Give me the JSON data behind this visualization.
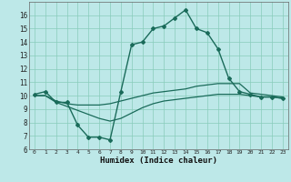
{
  "xlabel": "Humidex (Indice chaleur)",
  "bg_color": "#bde8e8",
  "grid_color": "#88ccbb",
  "line_color": "#1a6b5a",
  "xlim": [
    -0.5,
    23.5
  ],
  "ylim": [
    6,
    17
  ],
  "xticks": [
    0,
    1,
    2,
    3,
    4,
    5,
    6,
    7,
    8,
    9,
    10,
    11,
    12,
    13,
    14,
    15,
    16,
    17,
    18,
    19,
    20,
    21,
    22,
    23
  ],
  "yticks": [
    6,
    7,
    8,
    9,
    10,
    11,
    12,
    13,
    14,
    15,
    16
  ],
  "series": [
    {
      "x": [
        0,
        1,
        2,
        3,
        4,
        5,
        6,
        7,
        8,
        9,
        10,
        11,
        12,
        13,
        14,
        15,
        16,
        17,
        18,
        19,
        20,
        21,
        22,
        23
      ],
      "y": [
        10.1,
        10.3,
        9.5,
        9.5,
        7.8,
        6.9,
        6.9,
        6.7,
        10.3,
        13.8,
        14.0,
        15.0,
        15.2,
        15.8,
        16.4,
        15.0,
        14.7,
        13.5,
        11.3,
        10.3,
        10.1,
        9.9,
        9.9,
        9.8
      ],
      "markers": true
    },
    {
      "x": [
        0,
        1,
        2,
        3,
        4,
        5,
        6,
        7,
        8,
        9,
        10,
        11,
        12,
        13,
        14,
        15,
        16,
        17,
        18,
        19,
        20,
        21,
        22,
        23
      ],
      "y": [
        10.0,
        10.0,
        9.6,
        9.4,
        9.3,
        9.3,
        9.3,
        9.4,
        9.6,
        9.8,
        10.0,
        10.2,
        10.3,
        10.4,
        10.5,
        10.7,
        10.8,
        10.9,
        10.9,
        10.9,
        10.2,
        10.1,
        10.0,
        9.9
      ],
      "markers": false
    },
    {
      "x": [
        0,
        1,
        2,
        3,
        4,
        5,
        6,
        7,
        8,
        9,
        10,
        11,
        12,
        13,
        14,
        15,
        16,
        17,
        18,
        19,
        20,
        21,
        22,
        23
      ],
      "y": [
        10.0,
        10.0,
        9.5,
        9.2,
        8.9,
        8.6,
        8.3,
        8.1,
        8.3,
        8.7,
        9.1,
        9.4,
        9.6,
        9.7,
        9.8,
        9.9,
        10.0,
        10.1,
        10.1,
        10.1,
        10.0,
        9.9,
        9.9,
        9.8
      ],
      "markers": false
    }
  ]
}
